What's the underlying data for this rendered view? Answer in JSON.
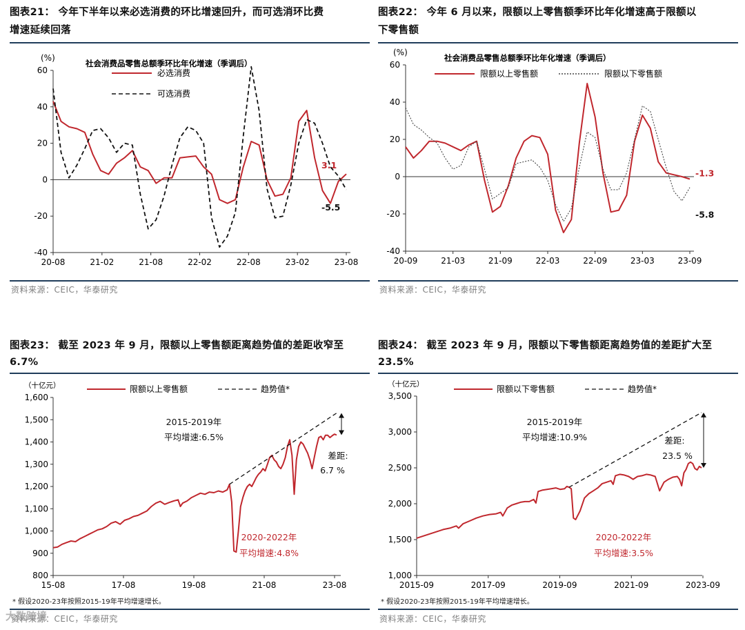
{
  "watermark": "大数跨境",
  "panels": [
    {
      "title": "图表21：  今年下半年以来必选消费的环比增速回升，而可选消环比费增速延续回落",
      "title_l1": "图表21：  今年下半年以来必选消费的环比增速回升，而可选消环比费",
      "title_l2": "增速延续回落",
      "source": "资料来源：CEIC，华泰研究"
    },
    {
      "title": "图表22：  今年 6 月以来，限额以上零售额季环比年化增速高于限额以下零售额",
      "title_l1": "图表22：  今年  6  月以来，限额以上零售额季环比年化增速高于限额以",
      "title_l2": "下零售额",
      "source": "资料来源：CEIC，华泰研究"
    },
    {
      "title": "图表23：  截至 2023 年 9 月，限额以上零售额距离趋势值的差距收窄至 6.7%",
      "title_l1": "图表23：  截至 2023 年 9 月，限额以上零售额距离趋势值的差距收窄至",
      "title_l2": "6.7%",
      "footnote": "* 假设2020-23年按照2015-19年平均增速增长。",
      "source": "资料来源：CEIC，华泰研究"
    },
    {
      "title": "图表24：  截至 2023 年 9 月，限额以下零售额距离趋势值的差距扩大至 23.5%",
      "title_l1": "图表24：  截至 2023 年 9 月，限额以下零售额距离趋势值的差距扩大至",
      "title_l2": "23.5%",
      "footnote": "* 假设2020-23年按照2015-19年平均增速增长。",
      "source": "资料来源：CEIC，华泰研究"
    }
  ],
  "chart_data": [
    {
      "type": "line",
      "title": "社会消费品零售总额季环比年化增速（季调后）",
      "ylabel": "(%)",
      "ylim": [
        -40,
        60
      ],
      "yticks": [
        -40,
        -20,
        0,
        20,
        40,
        60
      ],
      "xticks": [
        "20-08",
        "21-02",
        "21-08",
        "22-02",
        "22-08",
        "23-02",
        "23-08"
      ],
      "x_start": "2020-08",
      "x_end": "2023-09",
      "series": [
        {
          "name": "必选消费",
          "style": "solid",
          "color": "#c0272d",
          "values": [
            43,
            32,
            29,
            28,
            26,
            14,
            5,
            3,
            9,
            12,
            16,
            7,
            5,
            -2,
            1,
            1,
            12,
            12.5,
            13,
            7,
            3,
            -11,
            -13,
            -11,
            7,
            21,
            19,
            0,
            -9,
            -8,
            1,
            32,
            38,
            12,
            -6,
            -13,
            -1,
            3.1
          ]
        },
        {
          "name": "可选消费",
          "style": "dashed",
          "color": "#111111",
          "values": [
            50,
            15,
            1,
            8,
            17,
            27,
            28,
            23,
            15,
            20,
            19,
            -8,
            -27,
            -22,
            -9,
            8,
            23,
            29,
            27,
            20,
            -21,
            -37,
            -31,
            -18,
            24,
            62,
            38,
            -5,
            -21,
            -20,
            -3,
            20,
            33,
            31,
            20,
            7,
            2,
            -5.5
          ]
        }
      ],
      "end_labels": [
        {
          "text": "3.1",
          "color": "#c0272d"
        },
        {
          "text": "-5.5",
          "color": "#111111"
        }
      ]
    },
    {
      "type": "line",
      "title": "社会消费品零售总额季环比年化增速（季调后）",
      "ylabel": "(%)",
      "ylim": [
        -40,
        60
      ],
      "yticks": [
        -40,
        -20,
        0,
        20,
        40,
        60
      ],
      "xticks": [
        "20-09",
        "21-03",
        "21-09",
        "22-03",
        "22-09",
        "23-03",
        "23-09"
      ],
      "x_start": "2020-09",
      "x_end": "2023-09",
      "series": [
        {
          "name": "限额以上零售额",
          "style": "solid",
          "color": "#c0272d",
          "values": [
            16,
            10,
            14,
            19,
            19,
            18,
            16,
            14,
            17,
            19,
            -2,
            -19,
            -16,
            -5,
            10,
            19,
            22,
            21,
            12,
            -18,
            -30,
            -23,
            18,
            50,
            32,
            2,
            -19,
            -18,
            -10,
            19,
            33,
            26,
            8,
            2,
            1,
            0,
            -1.3
          ]
        },
        {
          "name": "限额以下零售额",
          "style": "dotted",
          "color": "#444444",
          "values": [
            37,
            28,
            25,
            21,
            18,
            10,
            4,
            6,
            16,
            19,
            4,
            -12,
            -9,
            -6,
            7,
            8,
            9,
            5,
            -2,
            -15,
            -24,
            -17,
            5,
            24,
            21,
            4,
            -7,
            -7,
            2,
            20,
            38,
            35,
            20,
            5,
            -8,
            -13,
            -5.8
          ]
        }
      ],
      "end_labels": [
        {
          "text": "-1.3",
          "color": "#c0272d"
        },
        {
          "text": "-5.8",
          "color": "#111111"
        }
      ]
    },
    {
      "type": "line",
      "ylabel": "（十亿元）",
      "ylim": [
        800,
        1600
      ],
      "yticks": [
        800,
        900,
        1000,
        1100,
        1200,
        1300,
        1400,
        1500,
        1600
      ],
      "ytick_labels": [
        "800",
        "900",
        "1,000",
        "1,100",
        "1,200",
        "1,300",
        "1,400",
        "1,500",
        "1,600"
      ],
      "xticks": [
        "15-08",
        "17-08",
        "19-08",
        "21-08",
        "23-08"
      ],
      "x_start": "2015-08",
      "x_end": "2023-09",
      "series": [
        {
          "name": "限额以上零售额",
          "style": "solid",
          "color": "#c0272d",
          "points": [
            [
              0,
              925
            ],
            [
              2,
              928
            ],
            [
              4,
              940
            ],
            [
              6,
              948
            ],
            [
              8,
              955
            ],
            [
              10,
              952
            ],
            [
              12,
              965
            ],
            [
              14,
              975
            ],
            [
              16,
              985
            ],
            [
              18,
              995
            ],
            [
              20,
              1005
            ],
            [
              22,
              1010
            ],
            [
              24,
              1020
            ],
            [
              26,
              1035
            ],
            [
              28,
              1042
            ],
            [
              30,
              1030
            ],
            [
              32,
              1048
            ],
            [
              34,
              1055
            ],
            [
              36,
              1065
            ],
            [
              38,
              1070
            ],
            [
              40,
              1080
            ],
            [
              42,
              1090
            ],
            [
              44,
              1110
            ],
            [
              46,
              1125
            ],
            [
              48,
              1133
            ],
            [
              50,
              1120
            ],
            [
              52,
              1128
            ],
            [
              54,
              1135
            ],
            [
              56,
              1140
            ],
            [
              57,
              1110
            ],
            [
              58,
              1125
            ],
            [
              60,
              1135
            ],
            [
              62,
              1150
            ],
            [
              64,
              1160
            ],
            [
              66,
              1170
            ],
            [
              68,
              1165
            ],
            [
              70,
              1175
            ],
            [
              72,
              1172
            ],
            [
              74,
              1180
            ],
            [
              76,
              1175
            ],
            [
              78,
              1185
            ],
            [
              79,
              1210
            ],
            [
              80,
              1130
            ],
            [
              81,
              910
            ],
            [
              82,
              905
            ],
            [
              83,
              1000
            ],
            [
              84,
              1110
            ],
            [
              85,
              1150
            ],
            [
              86,
              1180
            ],
            [
              87,
              1200
            ],
            [
              88,
              1210
            ],
            [
              89,
              1200
            ],
            [
              90,
              1220
            ],
            [
              91,
              1240
            ],
            [
              92,
              1255
            ],
            [
              93,
              1265
            ],
            [
              94,
              1280
            ],
            [
              95,
              1270
            ],
            [
              96,
              1300
            ],
            [
              97,
              1330
            ],
            [
              98,
              1340
            ],
            [
              99,
              1320
            ],
            [
              100,
              1310
            ],
            [
              101,
              1290
            ],
            [
              102,
              1280
            ],
            [
              103,
              1300
            ],
            [
              104,
              1330
            ],
            [
              105,
              1380
            ],
            [
              106,
              1410
            ],
            [
              107,
              1340
            ],
            [
              108,
              1165
            ],
            [
              109,
              1320
            ],
            [
              110,
              1380
            ],
            [
              111,
              1400
            ],
            [
              112,
              1390
            ],
            [
              113,
              1370
            ],
            [
              114,
              1350
            ],
            [
              115,
              1320
            ],
            [
              116,
              1280
            ],
            [
              117,
              1330
            ],
            [
              118,
              1380
            ],
            [
              119,
              1420
            ],
            [
              120,
              1425
            ],
            [
              121,
              1410
            ],
            [
              122,
              1430
            ],
            [
              123,
              1430
            ],
            [
              124,
              1420
            ],
            [
              125,
              1428
            ],
            [
              126,
              1435
            ],
            [
              127,
              1431
            ]
          ]
        },
        {
          "name": "趋势值*",
          "style": "dashed",
          "color": "#111111",
          "points": [
            [
              79,
              1210
            ],
            [
              127,
              1530
            ]
          ]
        }
      ],
      "annotations": [
        {
          "text": "2015-2019年",
          "color": "#111111"
        },
        {
          "text": "平均增速:6.5%",
          "color": "#111111"
        },
        {
          "text": "2020-2022年",
          "color": "#c0272d"
        },
        {
          "text": "平均增速:4.8%",
          "color": "#c0272d"
        },
        {
          "text": "差距:",
          "color": "#111111"
        },
        {
          "text": "6.7 %",
          "color": "#111111"
        }
      ],
      "gap_arrow": {
        "from": 1431,
        "to": 1530
      }
    },
    {
      "type": "line",
      "ylabel": "（十亿元）",
      "ylim": [
        1000,
        3500
      ],
      "yticks": [
        1000,
        1500,
        2000,
        2500,
        3000,
        3500
      ],
      "ytick_labels": [
        "1,000",
        "1,500",
        "2,000",
        "2,500",
        "3,000",
        "3,500"
      ],
      "xticks": [
        "2015-09",
        "2017-09",
        "2019-09",
        "2021-09",
        "2023-09"
      ],
      "x_start": "2015-09",
      "x_end": "2023-09",
      "series": [
        {
          "name": "限额以下零售额",
          "style": "solid",
          "color": "#c0272d",
          "points": [
            [
              0,
              1520
            ],
            [
              3,
              1550
            ],
            [
              6,
              1580
            ],
            [
              9,
              1610
            ],
            [
              12,
              1640
            ],
            [
              15,
              1660
            ],
            [
              18,
              1690
            ],
            [
              19,
              1660
            ],
            [
              21,
              1720
            ],
            [
              24,
              1760
            ],
            [
              27,
              1800
            ],
            [
              30,
              1830
            ],
            [
              33,
              1850
            ],
            [
              36,
              1860
            ],
            [
              38,
              1880
            ],
            [
              39,
              1830
            ],
            [
              41,
              1940
            ],
            [
              43,
              1980
            ],
            [
              45,
              2000
            ],
            [
              47,
              2020
            ],
            [
              49,
              2030
            ],
            [
              51,
              2030
            ],
            [
              53,
              2060
            ],
            [
              54,
              2010
            ],
            [
              55,
              2170
            ],
            [
              57,
              2190
            ],
            [
              59,
              2200
            ],
            [
              61,
              2210
            ],
            [
              63,
              2220
            ],
            [
              65,
              2200
            ],
            [
              67,
              2210
            ],
            [
              68,
              2240
            ],
            [
              69,
              2230
            ],
            [
              70,
              2210
            ],
            [
              71,
              1800
            ],
            [
              72,
              1780
            ],
            [
              74,
              1900
            ],
            [
              76,
              2080
            ],
            [
              78,
              2140
            ],
            [
              80,
              2180
            ],
            [
              82,
              2220
            ],
            [
              84,
              2280
            ],
            [
              86,
              2300
            ],
            [
              88,
              2320
            ],
            [
              89,
              2270
            ],
            [
              90,
              2390
            ],
            [
              92,
              2410
            ],
            [
              94,
              2400
            ],
            [
              96,
              2380
            ],
            [
              98,
              2340
            ],
            [
              100,
              2380
            ],
            [
              102,
              2390
            ],
            [
              104,
              2410
            ],
            [
              106,
              2400
            ],
            [
              108,
              2380
            ],
            [
              110,
              2180
            ],
            [
              112,
              2300
            ],
            [
              114,
              2340
            ],
            [
              116,
              2370
            ],
            [
              118,
              2380
            ],
            [
              119,
              2340
            ],
            [
              120,
              2250
            ],
            [
              121,
              2430
            ],
            [
              122,
              2480
            ],
            [
              123,
              2560
            ],
            [
              124,
              2580
            ],
            [
              125,
              2560
            ],
            [
              126,
              2490
            ],
            [
              127,
              2470
            ],
            [
              128,
              2520
            ],
            [
              129,
              2500
            ]
          ]
        },
        {
          "name": "趋势值*",
          "style": "dashed",
          "color": "#111111",
          "points": [
            [
              69,
              2230
            ],
            [
              129,
              3270
            ]
          ]
        }
      ],
      "annotations": [
        {
          "text": "2015-2019年",
          "color": "#111111"
        },
        {
          "text": "平均增速:10.9%",
          "color": "#111111"
        },
        {
          "text": "2020-2022年",
          "color": "#c0272d"
        },
        {
          "text": "平均增速:3.5%",
          "color": "#c0272d"
        },
        {
          "text": "差距:",
          "color": "#111111"
        },
        {
          "text": "23.5 %",
          "color": "#111111"
        }
      ],
      "gap_arrow": {
        "from": 2500,
        "to": 3270
      }
    }
  ]
}
